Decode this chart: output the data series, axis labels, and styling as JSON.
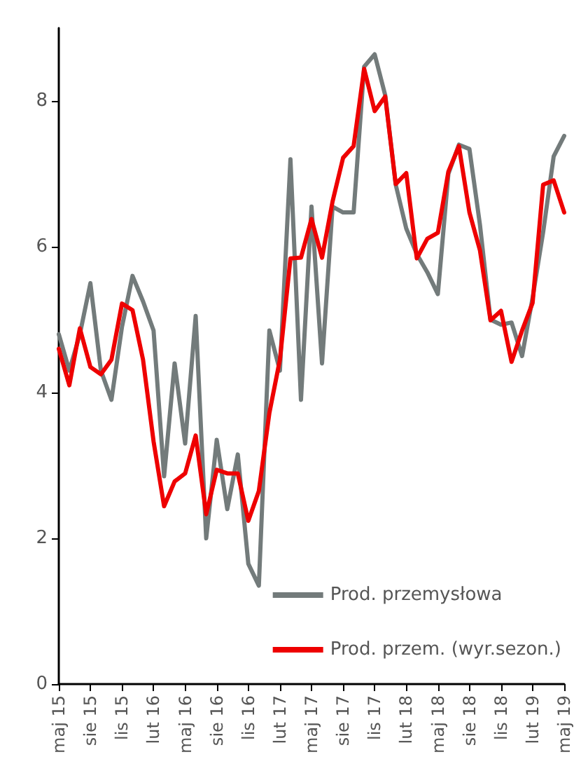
{
  "chart_data": {
    "type": "line",
    "categories": [
      "maj 15",
      null,
      null,
      "sie 15",
      null,
      null,
      "lis 15",
      null,
      null,
      "lut 16",
      null,
      null,
      "maj 16",
      null,
      null,
      "sie 16",
      null,
      null,
      "lis 16",
      null,
      null,
      "lut 17",
      null,
      null,
      "maj 17",
      null,
      null,
      "sie 17",
      null,
      null,
      "lis 17",
      null,
      null,
      "lut 18",
      null,
      null,
      "maj 18",
      null,
      null,
      "sie 18",
      null,
      null,
      "lis 18",
      null,
      null,
      "lut 19",
      null,
      null,
      "maj 19"
    ],
    "series": [
      {
        "name": "Prod. przemysłowa",
        "color": "#737b7b",
        "values": [
          4.8,
          4.3,
          4.8,
          5.5,
          4.3,
          3.9,
          4.9,
          5.6,
          5.25,
          4.85,
          2.85,
          4.4,
          3.3,
          5.05,
          2.0,
          3.35,
          2.4,
          3.15,
          1.65,
          1.35,
          4.85,
          4.3,
          7.2,
          3.9,
          6.55,
          4.4,
          6.55,
          6.47,
          6.47,
          8.47,
          8.64,
          8.08,
          6.85,
          6.25,
          5.9,
          5.65,
          5.35,
          7.0,
          7.4,
          7.34,
          6.3,
          5.0,
          4.93,
          4.96,
          4.5,
          5.3,
          6.2,
          7.24,
          7.52
        ]
      },
      {
        "name": "Prod. przem. (wyr.sezon.)",
        "color": "#ee0000",
        "values": [
          4.6,
          4.1,
          4.88,
          4.35,
          4.25,
          4.45,
          5.22,
          5.13,
          4.45,
          3.33,
          2.44,
          2.78,
          2.89,
          3.41,
          2.33,
          2.94,
          2.89,
          2.89,
          2.24,
          2.65,
          3.72,
          4.45,
          5.84,
          5.85,
          6.38,
          5.85,
          6.62,
          7.22,
          7.38,
          8.44,
          7.86,
          8.06,
          6.86,
          7.01,
          5.84,
          6.11,
          6.19,
          7.03,
          7.38,
          6.47,
          5.95,
          4.99,
          5.12,
          4.42,
          4.85,
          5.23,
          6.85,
          6.91,
          6.47
        ]
      }
    ],
    "ylim": [
      0,
      9
    ],
    "yticks": [
      0,
      2,
      4,
      6,
      8
    ],
    "grid": false,
    "legend": "bottom right",
    "marker": "none",
    "line_style": "solid"
  }
}
